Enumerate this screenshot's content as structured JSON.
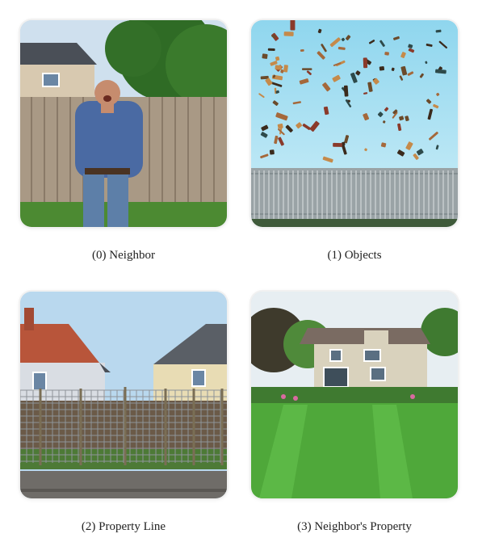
{
  "panels": [
    {
      "index": 0,
      "caption": "(0) Neighbor",
      "image": "angry-man-by-fence"
    },
    {
      "index": 1,
      "caption": "(1) Objects",
      "image": "objects-flying-over-fence"
    },
    {
      "index": 2,
      "caption": "(2) Property Line",
      "image": "wire-fence-between-houses"
    },
    {
      "index": 3,
      "caption": "(3) Neighbor's Property",
      "image": "house-with-lawn"
    }
  ]
}
